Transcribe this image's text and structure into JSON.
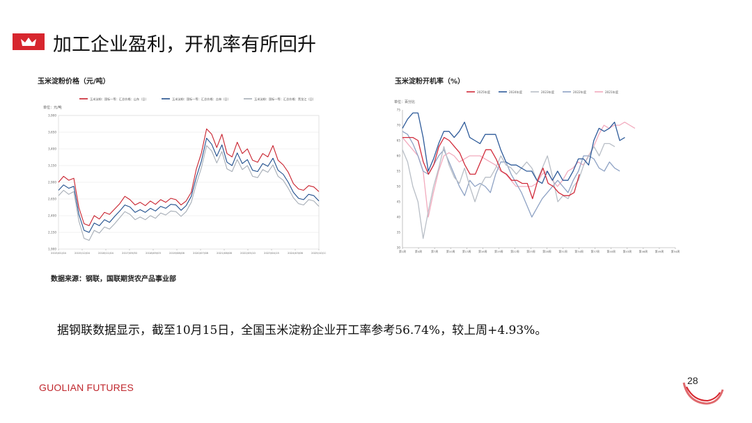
{
  "page": {
    "title": "加工企业盈利，开机率有所回升",
    "note": "据钢联数据显示，截至10月15日，全国玉米淀粉企业开工率参考56.74%，较上周+4.93%。",
    "source": "数据来源：钢联，国联期货农产品事业部",
    "brand": "GUOLIAN FUTURES",
    "page_number": "28",
    "colors": {
      "accent": "#d7262e",
      "brand": "#c0272d"
    },
    "icons": [
      "crown-icon"
    ]
  },
  "chart_data": [
    {
      "type": "line",
      "title": "玉米淀粉价格（元/吨）",
      "unit_label": "单位：元/吨",
      "legend": [
        "玉米淀粉：国标一等：汇总价格：山东（日）",
        "玉米淀粉：国标一等：汇总价格：吉林（日）",
        "玉米淀粉：国标一等：汇总价格：黑龙江（日）"
      ],
      "legend_position": "top",
      "grid": true,
      "ylim": [
        1900,
        3900
      ],
      "yticks": [
        "1,900",
        "2,150",
        "2,400",
        "2,650",
        "2,900",
        "3,150",
        "3,400",
        "3,650",
        "3,900"
      ],
      "xticks": [
        "2015/01/04",
        "2015/12/04",
        "2016/11/04",
        "2017/09/30",
        "2018/09/03",
        "2019/08/06",
        "2020/07/08",
        "2021/06/08",
        "2022/05/10",
        "2023/04/15",
        "2024/03/06",
        "2025/10/17"
      ],
      "series": [
        {
          "name": "玉米淀粉：国标一等：汇总价格：山东（日）",
          "color": "#c8202c",
          "values": [
            2900,
            2990,
            2930,
            2960,
            2520,
            2280,
            2250,
            2400,
            2350,
            2450,
            2420,
            2500,
            2580,
            2690,
            2640,
            2560,
            2600,
            2550,
            2620,
            2570,
            2640,
            2600,
            2660,
            2640,
            2560,
            2620,
            2750,
            3100,
            3340,
            3700,
            3620,
            3420,
            3620,
            3330,
            3280,
            3500,
            3330,
            3400,
            3230,
            3200,
            3330,
            3280,
            3450,
            3230,
            3160,
            3050,
            2880,
            2800,
            2780,
            2850,
            2830,
            2760
          ]
        },
        {
          "name": "玉米淀粉：国标一等：汇总价格：吉林（日）",
          "color": "#1f4e8c",
          "values": [
            2780,
            2860,
            2810,
            2840,
            2420,
            2180,
            2150,
            2290,
            2250,
            2340,
            2300,
            2390,
            2470,
            2560,
            2530,
            2450,
            2490,
            2450,
            2510,
            2470,
            2540,
            2510,
            2570,
            2560,
            2480,
            2550,
            2690,
            2980,
            3220,
            3560,
            3470,
            3290,
            3460,
            3200,
            3150,
            3340,
            3180,
            3240,
            3080,
            3060,
            3180,
            3140,
            3260,
            3080,
            3020,
            2900,
            2750,
            2660,
            2640,
            2720,
            2700,
            2620
          ]
        },
        {
          "name": "玉米淀粉：国标一等：汇总价格：黑龙江（日）",
          "color": "#a6adb6",
          "values": [
            2700,
            2780,
            2720,
            2760,
            2320,
            2060,
            2030,
            2180,
            2140,
            2230,
            2200,
            2280,
            2370,
            2460,
            2420,
            2340,
            2380,
            2340,
            2400,
            2360,
            2440,
            2410,
            2470,
            2460,
            2390,
            2460,
            2600,
            2880,
            3120,
            3450,
            3370,
            3190,
            3360,
            3100,
            3060,
            3240,
            3090,
            3150,
            2990,
            2970,
            3090,
            3050,
            3160,
            2990,
            2930,
            2810,
            2670,
            2580,
            2560,
            2640,
            2620,
            2540
          ]
        }
      ]
    },
    {
      "type": "line",
      "title": "玉米淀粉开机率（%）",
      "unit_label": "单位：百分比",
      "legend": [
        "2025年度",
        "2024年度",
        "2023年度",
        "2022年度",
        "2021年度"
      ],
      "legend_position": "top",
      "grid": false,
      "ylim": [
        30,
        75
      ],
      "yticks": [
        "30",
        "35",
        "40",
        "45",
        "50",
        "55",
        "60",
        "65",
        "70",
        "75"
      ],
      "xticks": [
        "第1周",
        "第4周",
        "第7周",
        "第10周",
        "第13周",
        "第16周",
        "第19周",
        "第22周",
        "第25周",
        "第28周",
        "第31周",
        "第34周",
        "第37周",
        "第40周",
        "第43周",
        "第46周",
        "第49周",
        "第54周"
      ],
      "series": [
        {
          "name": "2025年度",
          "color": "#d12b3a",
          "values": [
            66,
            66,
            66,
            65,
            58,
            54,
            57,
            63,
            66,
            65,
            63,
            61,
            57,
            54,
            54,
            58,
            62,
            62,
            59,
            55,
            54,
            52,
            52,
            51,
            51,
            46,
            52,
            56,
            51,
            50,
            48,
            47,
            47,
            48,
            54
          ]
        },
        {
          "name": "2024年度",
          "color": "#2d5a99",
          "values": [
            69,
            72,
            74,
            74,
            66,
            55,
            59,
            64,
            68,
            68,
            66,
            68,
            71,
            66,
            65,
            64,
            67,
            67,
            67,
            62,
            58,
            57,
            57,
            56,
            55,
            55,
            52,
            51,
            55,
            52,
            55,
            52,
            52,
            55,
            59,
            59,
            57,
            65,
            69,
            68,
            69,
            71,
            65,
            66
          ]
        },
        {
          "name": "2023年度",
          "color": "#b8bec6",
          "values": [
            62,
            58,
            50,
            45,
            33,
            42,
            50,
            56,
            63,
            57,
            53,
            51,
            56,
            50,
            45,
            50,
            53,
            53,
            56,
            60,
            57,
            56,
            54,
            56,
            58,
            56,
            52,
            56,
            60,
            53,
            45,
            47,
            46,
            50,
            52,
            57,
            60,
            63,
            60,
            64,
            64,
            63
          ]
        },
        {
          "name": "2022年度",
          "color": "#8ea2c4",
          "values": [
            68,
            67,
            64,
            60,
            55,
            54,
            57,
            60,
            62,
            58,
            54,
            50,
            47,
            52,
            50,
            51,
            50,
            48,
            54,
            58,
            58,
            54,
            51,
            48,
            44,
            40,
            43,
            46,
            48,
            50,
            52,
            50,
            48,
            52,
            55,
            60,
            60,
            59,
            56,
            55,
            58,
            56,
            55
          ]
        },
        {
          "name": "2021年度",
          "color": "#f2aabd",
          "values": [
            66,
            64,
            62,
            60,
            55,
            40,
            48,
            55,
            60,
            61,
            60,
            58,
            59,
            60,
            60,
            60,
            59,
            58,
            57,
            55,
            54,
            52,
            50,
            50,
            50,
            50,
            51,
            54,
            55,
            52,
            50,
            52,
            55,
            56,
            58,
            57,
            60,
            63,
            67,
            70,
            69,
            70,
            70,
            71,
            70,
            69
          ]
        }
      ]
    }
  ]
}
